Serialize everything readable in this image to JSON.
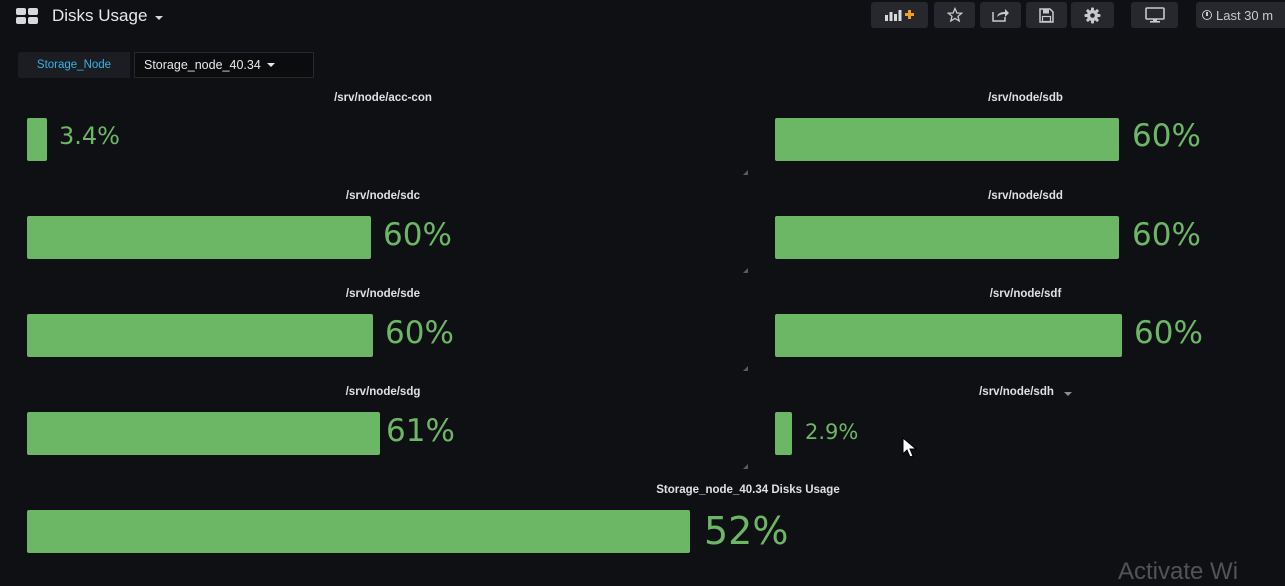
{
  "header": {
    "title": "Disks Usage",
    "buttons": {
      "add_panel": "bar-chart-plus-icon",
      "star": "star-icon",
      "share": "share-icon",
      "save": "save-icon",
      "settings": "gear-icon",
      "tv_mode": "monitor-icon"
    },
    "time_range": "Last 30 m"
  },
  "variables": {
    "label": "Storage_Node",
    "selected": "Storage_node_40.34"
  },
  "panels": [
    {
      "title": "/srv/node/acc-con",
      "value": "3.4%",
      "fraction": 0.034
    },
    {
      "title": "/srv/node/sdb",
      "value": "60%",
      "fraction": 0.6
    },
    {
      "title": "/srv/node/sdc",
      "value": "60%",
      "fraction": 0.6
    },
    {
      "title": "/srv/node/sdd",
      "value": "60%",
      "fraction": 0.6
    },
    {
      "title": "/srv/node/sde",
      "value": "60%",
      "fraction": 0.6
    },
    {
      "title": "/srv/node/sdf",
      "value": "60%",
      "fraction": 0.6
    },
    {
      "title": "/srv/node/sdg",
      "value": "61%",
      "fraction": 0.61
    },
    {
      "title": "/srv/node/sdh",
      "value": "2.9%",
      "fraction": 0.029
    },
    {
      "title": "Storage_node_40.34 Disks Usage",
      "value": "52%",
      "fraction": 0.52
    }
  ],
  "colors": {
    "bar": "#6cb765",
    "background": "#0f1014",
    "variable_label": "#33b5e5"
  },
  "watermark": "Activate Wi"
}
